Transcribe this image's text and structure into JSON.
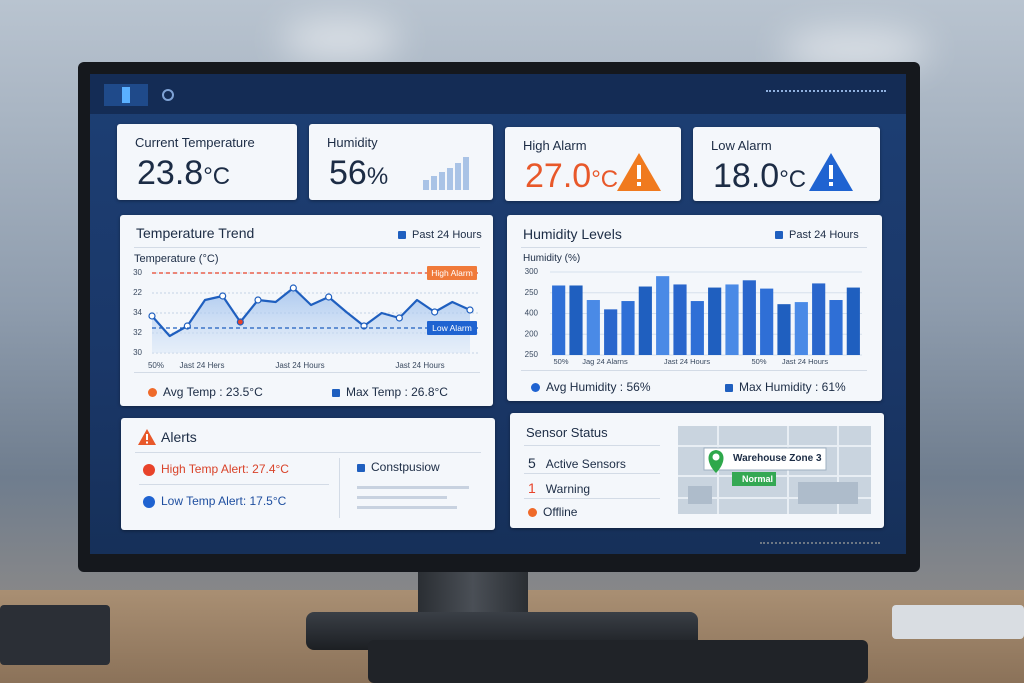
{
  "kpis": [
    {
      "label": "Current Temperature",
      "value": "23.8",
      "unit": "°C"
    },
    {
      "label": "Humidity",
      "value": "56",
      "unit": "%"
    },
    {
      "label": "High Alarm",
      "value": "27.0",
      "unit": "°C"
    },
    {
      "label": "Low Alarm",
      "value": "18.0",
      "unit": "°C"
    }
  ],
  "temperature_trend": {
    "title": "Temperature Trend",
    "filter": "Past 24 Hours",
    "y_label": "Temperature (°C)",
    "ylim": [
      0,
      4
    ],
    "yticks": [
      {
        "value": 4,
        "label": "30"
      },
      {
        "value": 3,
        "label": "22"
      },
      {
        "value": 2,
        "label": "34"
      },
      {
        "value": 1,
        "label": "32"
      },
      {
        "value": 0,
        "label": "30"
      }
    ],
    "x_labels": [
      "50%",
      "Jast 24 Hers",
      "Jast 24 Hours",
      "Jast 24 Hours"
    ],
    "values": [
      1.85,
      0.85,
      1.35,
      2.65,
      2.85,
      1.55,
      2.65,
      2.55,
      3.25,
      2.4,
      2.8,
      2.05,
      1.35,
      2.0,
      1.75,
      2.65,
      2.05,
      2.55,
      2.15
    ],
    "high_alarm": {
      "value": 4,
      "label": "High Alarm"
    },
    "low_alarm": {
      "value": 1.25,
      "label": "Low Alarm"
    },
    "avg": "Avg Temp : 23.5°C",
    "max": "Max Temp : 26.8°C"
  },
  "humidity_levels": {
    "title": "Humidity Levels",
    "filter": "Past 24 Hours",
    "y_label": "Humidity (%)",
    "ylim": [
      0,
      4
    ],
    "yticks": [
      {
        "value": 4,
        "label": "300"
      },
      {
        "value": 3,
        "label": "250"
      },
      {
        "value": 2,
        "label": "400"
      },
      {
        "value": 1,
        "label": "200"
      },
      {
        "value": 0,
        "label": "250"
      }
    ],
    "x_labels": [
      "50%",
      "Jag 24 Alarns",
      "Jast 24 Hours",
      "50%",
      "Jast 24 Hours"
    ],
    "values": [
      3.35,
      3.35,
      2.65,
      2.2,
      2.6,
      3.3,
      3.8,
      3.4,
      2.6,
      3.25,
      3.4,
      3.6,
      3.2,
      2.45,
      2.55,
      3.45,
      2.65,
      3.25
    ],
    "avg": "Avg Humidity : 56%",
    "max": "Max Humidity : 61%"
  },
  "alerts": {
    "title": "Alerts",
    "items": [
      "High Temp Alert: 27.4°C",
      "Low Temp Alert: 17.5°C"
    ],
    "side": "Constpusiow"
  },
  "sensor_status": {
    "title": "Sensor Status",
    "rows": [
      {
        "count": "5",
        "label": "Active Sensors"
      },
      {
        "count": "1",
        "label": "Warning"
      },
      {
        "label": "Offline"
      }
    ],
    "map": {
      "location": "Warehouse Zone 3",
      "state": "Normal"
    }
  }
}
